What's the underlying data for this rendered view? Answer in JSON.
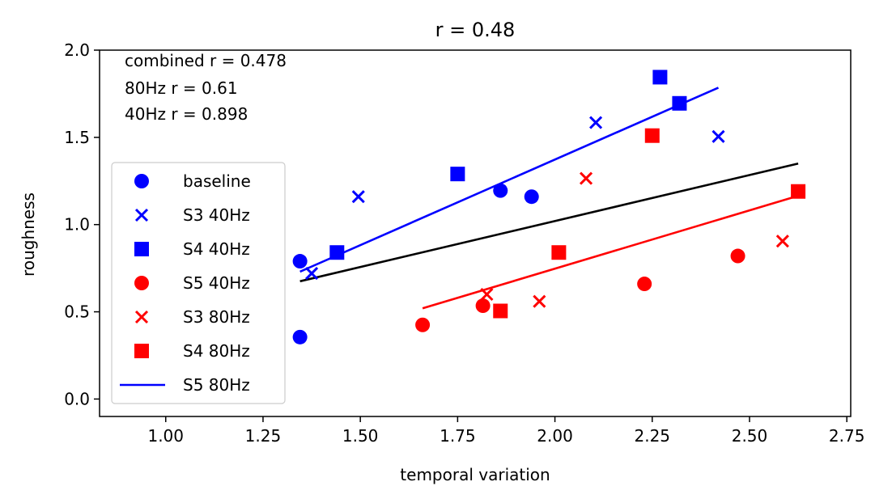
{
  "chart_data": {
    "type": "scatter",
    "title": "r = 0.48",
    "xlabel": "temporal variation",
    "ylabel": "roughness",
    "xlim": [
      0.83,
      2.76
    ],
    "ylim": [
      -0.1,
      2.0
    ],
    "xticks": [
      1.0,
      1.25,
      1.5,
      1.75,
      2.0,
      2.25,
      2.5,
      2.75
    ],
    "xtick_labels": [
      "1.00",
      "1.25",
      "1.50",
      "1.75",
      "2.00",
      "2.25",
      "2.50",
      "2.75"
    ],
    "yticks": [
      0.0,
      0.5,
      1.0,
      1.5,
      2.0
    ],
    "ytick_labels": [
      "0.0",
      "0.5",
      "1.0",
      "1.5",
      "2.0"
    ],
    "annotations": [
      "combined r = 0.478",
      "80Hz r = 0.61",
      "40Hz r = 0.898"
    ],
    "legend_position": "lower-left",
    "series": [
      {
        "name": "baseline",
        "marker": "circle",
        "color": "#0000ff",
        "points": [
          [
            1.345,
            0.79
          ],
          [
            1.345,
            0.355
          ],
          [
            1.86,
            1.195
          ],
          [
            1.94,
            1.16
          ]
        ]
      },
      {
        "name": "S3 40Hz",
        "marker": "x",
        "color": "#0000ff",
        "points": [
          [
            1.375,
            0.72
          ],
          [
            1.495,
            1.16
          ],
          [
            2.105,
            1.585
          ],
          [
            2.42,
            1.505
          ]
        ]
      },
      {
        "name": "S4 40Hz",
        "marker": "square",
        "color": "#0000ff",
        "points": [
          [
            1.44,
            0.84
          ],
          [
            1.75,
            1.29
          ],
          [
            2.27,
            1.845
          ],
          [
            2.32,
            1.695
          ]
        ]
      },
      {
        "name": "S5 40Hz",
        "marker": "circle",
        "color": "#ff0000",
        "points": [
          [
            1.66,
            0.425
          ],
          [
            1.815,
            0.535
          ],
          [
            2.23,
            0.66
          ],
          [
            2.47,
            0.82
          ]
        ]
      },
      {
        "name": "S3 80Hz",
        "marker": "x",
        "color": "#ff0000",
        "points": [
          [
            1.825,
            0.6
          ],
          [
            1.96,
            0.56
          ],
          [
            2.08,
            1.265
          ],
          [
            2.585,
            0.905
          ]
        ]
      },
      {
        "name": "S4 80Hz",
        "marker": "square",
        "color": "#ff0000",
        "points": [
          [
            1.86,
            0.505
          ],
          [
            2.01,
            0.84
          ],
          [
            2.25,
            1.51
          ],
          [
            2.625,
            1.19
          ]
        ]
      },
      {
        "name": "S5 80Hz",
        "marker": "line",
        "color": "#0000ff",
        "points": []
      }
    ],
    "fit_lines": [
      {
        "color": "#0000ff",
        "x": [
          1.345,
          2.42
        ],
        "y": [
          0.73,
          1.785
        ]
      },
      {
        "color": "#000000",
        "x": [
          1.345,
          2.625
        ],
        "y": [
          0.675,
          1.35
        ]
      },
      {
        "color": "#ff0000",
        "x": [
          1.66,
          2.625
        ],
        "y": [
          0.52,
          1.165
        ]
      }
    ]
  }
}
